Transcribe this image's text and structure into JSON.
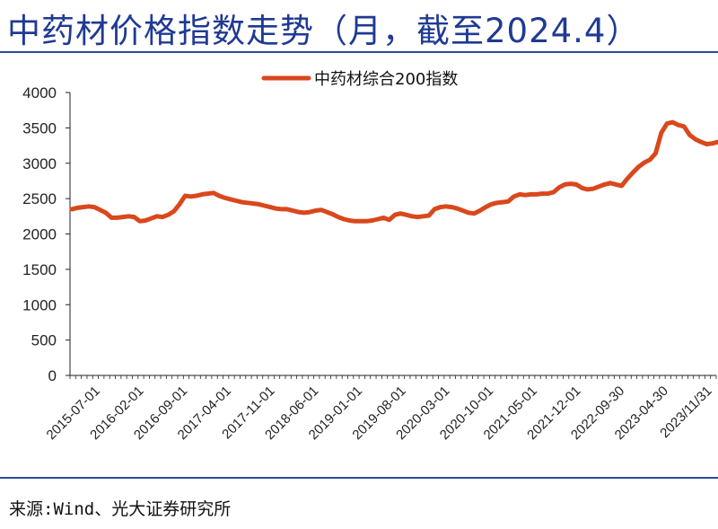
{
  "page_title": "中药材价格指数走势（月，截至2024.4）",
  "source_text": "来源:Wind、光大证券研究所",
  "colors": {
    "title": "#1f3a93",
    "rule": "#2a4a9a",
    "series": "#d9481c",
    "axis": "#222222"
  },
  "chart_data": {
    "type": "line",
    "title": "",
    "xlabel": "",
    "ylabel": "",
    "ylim": [
      0,
      4000
    ],
    "yticks": [
      0,
      500,
      1000,
      1500,
      2000,
      2500,
      3000,
      3500,
      4000
    ],
    "grid": false,
    "legend_position": "top-center",
    "x_tick_labels": [
      "2015-07-01",
      "2016-02-01",
      "2016-09-01",
      "2017-04-01",
      "2017-11-01",
      "2018-06-01",
      "2019-01-01",
      "2019-08-01",
      "2020-03-01",
      "2020-10-01",
      "2021-05-01",
      "2021-12-01",
      "2022-09-30",
      "2023-04-30",
      "2023/11/31"
    ],
    "series": [
      {
        "name": "中药材综合200指数",
        "color": "#d9481c",
        "values": [
          2350,
          2370,
          2380,
          2390,
          2380,
          2340,
          2300,
          2230,
          2230,
          2240,
          2250,
          2240,
          2180,
          2190,
          2220,
          2250,
          2240,
          2270,
          2320,
          2420,
          2540,
          2530,
          2540,
          2560,
          2570,
          2580,
          2540,
          2510,
          2490,
          2470,
          2450,
          2440,
          2430,
          2420,
          2400,
          2380,
          2360,
          2350,
          2350,
          2330,
          2310,
          2300,
          2310,
          2330,
          2340,
          2310,
          2280,
          2240,
          2210,
          2190,
          2180,
          2180,
          2180,
          2190,
          2210,
          2230,
          2200,
          2270,
          2290,
          2270,
          2250,
          2240,
          2250,
          2260,
          2350,
          2380,
          2390,
          2380,
          2360,
          2330,
          2300,
          2290,
          2330,
          2380,
          2420,
          2440,
          2450,
          2460,
          2530,
          2560,
          2550,
          2560,
          2560,
          2570,
          2570,
          2590,
          2660,
          2700,
          2710,
          2700,
          2650,
          2630,
          2640,
          2670,
          2700,
          2720,
          2700,
          2680,
          2780,
          2870,
          2950,
          3010,
          3050,
          3140,
          3430,
          3560,
          3580,
          3540,
          3520,
          3400,
          3340,
          3300,
          3270,
          3280,
          3300
        ]
      }
    ]
  }
}
